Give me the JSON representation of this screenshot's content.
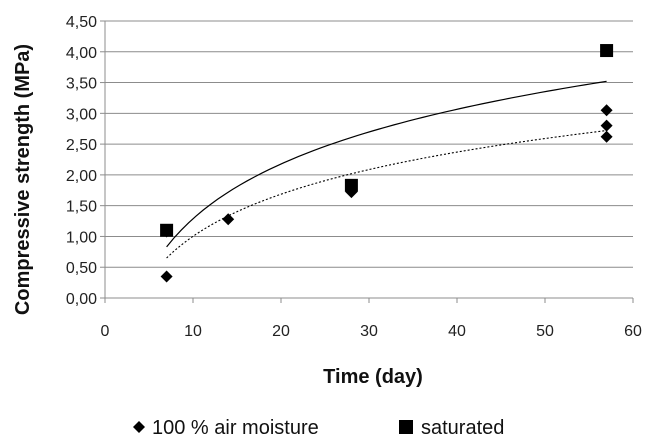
{
  "chart_data": {
    "type": "scatter",
    "title": "",
    "xlabel": "Time (day)",
    "ylabel": "Compressive strength (MPa)",
    "xlim": [
      0,
      60
    ],
    "ylim": [
      0,
      4.5
    ],
    "x_ticks": [
      "0",
      "10",
      "20",
      "30",
      "40",
      "50",
      "60"
    ],
    "y_ticks": [
      "0,00",
      "0,50",
      "1,00",
      "1,50",
      "2,00",
      "2,50",
      "3,00",
      "3,50",
      "4,00",
      "4,50"
    ],
    "grid": "horizontal",
    "legend_position": "bottom",
    "series": [
      {
        "name": "100 % air moisture",
        "marker": "diamond",
        "color": "#000000",
        "points": [
          {
            "x": 7,
            "y": 0.35
          },
          {
            "x": 7,
            "y": 1.08
          },
          {
            "x": 14,
            "y": 1.28
          },
          {
            "x": 28,
            "y": 1.72
          },
          {
            "x": 57,
            "y": 2.62
          },
          {
            "x": 57,
            "y": 2.8
          },
          {
            "x": 57,
            "y": 3.05
          }
        ],
        "trendline": {
          "style": "dotted",
          "x_from": 7,
          "x_to": 57,
          "y_from": 0.65,
          "y_to": 2.72
        }
      },
      {
        "name": "saturated",
        "marker": "square",
        "color": "#000000",
        "points": [
          {
            "x": 7,
            "y": 1.1
          },
          {
            "x": 28,
            "y": 1.83
          },
          {
            "x": 57,
            "y": 4.02
          }
        ],
        "trendline": {
          "style": "solid",
          "x_from": 7,
          "x_to": 57,
          "y_from": 0.83,
          "y_to": 3.52
        }
      }
    ]
  }
}
